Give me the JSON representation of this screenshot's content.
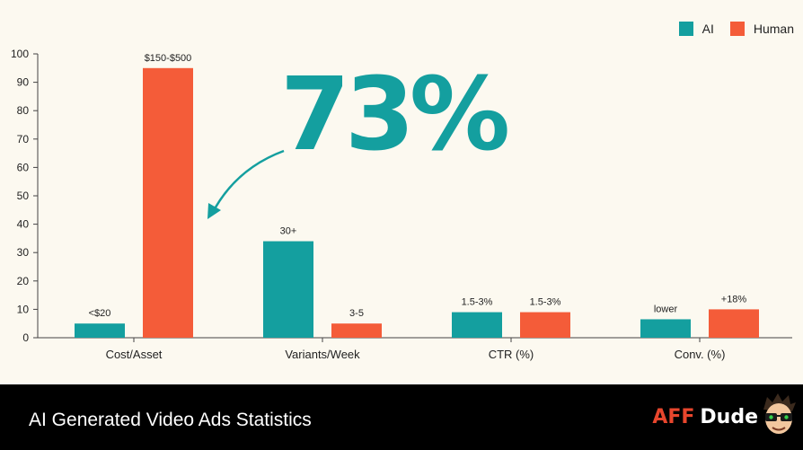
{
  "colors": {
    "ai": "#149f9f",
    "human": "#f45c39",
    "axis": "#444444",
    "background": "#fcf9f0"
  },
  "legend": {
    "ai_label": "AI",
    "human_label": "Human"
  },
  "annotation": {
    "big_stat": "73%",
    "color": "#149f9f"
  },
  "footer": {
    "title": "AI Generated Video Ads Statistics",
    "brand_part1": "AFF",
    "brand_part2": "Dude"
  },
  "chart_data": {
    "type": "bar",
    "categories": [
      "Cost/Asset",
      "Variants/Week",
      "CTR (%)",
      "Conv. (%)"
    ],
    "series": [
      {
        "name": "AI",
        "values": [
          5,
          34,
          9,
          6.5
        ],
        "labels": [
          "<$20",
          "30+",
          "1.5-3%",
          "lower"
        ]
      },
      {
        "name": "Human",
        "values": [
          95,
          5,
          9,
          10
        ],
        "labels": [
          "$150-$500",
          "3-5",
          "1.5-3%",
          "+18%"
        ]
      }
    ],
    "ylim": [
      0,
      100
    ],
    "yticks": [
      0,
      10,
      20,
      30,
      40,
      50,
      60,
      70,
      80,
      90,
      100
    ],
    "grid": false,
    "legend_position": "top-right"
  }
}
